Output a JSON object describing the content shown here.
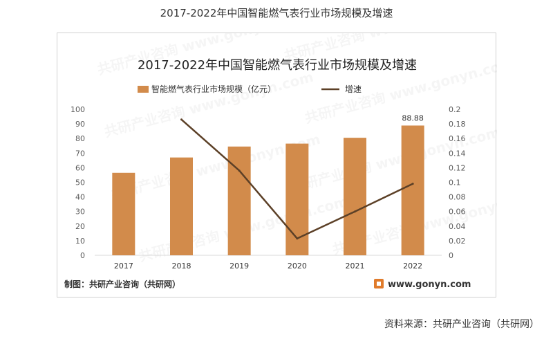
{
  "page": {
    "title": "2017-2022年中国智能燃气表行业市场规模及增速",
    "source": "资料来源：共研产业咨询（共研网）"
  },
  "card": {
    "maker": "制图：共研产业咨询（共研网）",
    "site": "www.gonyn.com",
    "watermark": "共研产业咨询 www.gonyn.com"
  },
  "chart_data": {
    "type": "bar",
    "title": "2017-2022年中国智能燃气表行业市场规模及增速",
    "categories": [
      "2017",
      "2018",
      "2019",
      "2020",
      "2021",
      "2022"
    ],
    "series": [
      {
        "name": "智能燃气表行业市场规模（亿元）",
        "type": "bar",
        "axis": "left",
        "values": [
          56.5,
          67,
          74.5,
          76.5,
          80.5,
          88.88
        ]
      },
      {
        "name": "增速",
        "type": "line",
        "axis": "right",
        "values": [
          null,
          0.186,
          0.116,
          0.023,
          0.06,
          0.098
        ]
      }
    ],
    "data_labels": [
      null,
      null,
      null,
      null,
      null,
      "88.88"
    ],
    "ylim": [
      0,
      100
    ],
    "yticks": [
      "0",
      "10",
      "20",
      "30",
      "40",
      "50",
      "60",
      "70",
      "80",
      "90",
      "100"
    ],
    "y2lim": [
      0,
      0.2
    ],
    "y2ticks": [
      "0",
      "0.02",
      "0.04",
      "0.06",
      "0.08",
      "0.1",
      "0.12",
      "0.14",
      "0.16",
      "0.18",
      "0.2"
    ],
    "legend": "top",
    "grid": false,
    "colors": {
      "bar": "#D28B4B",
      "line": "#5C4027"
    }
  }
}
